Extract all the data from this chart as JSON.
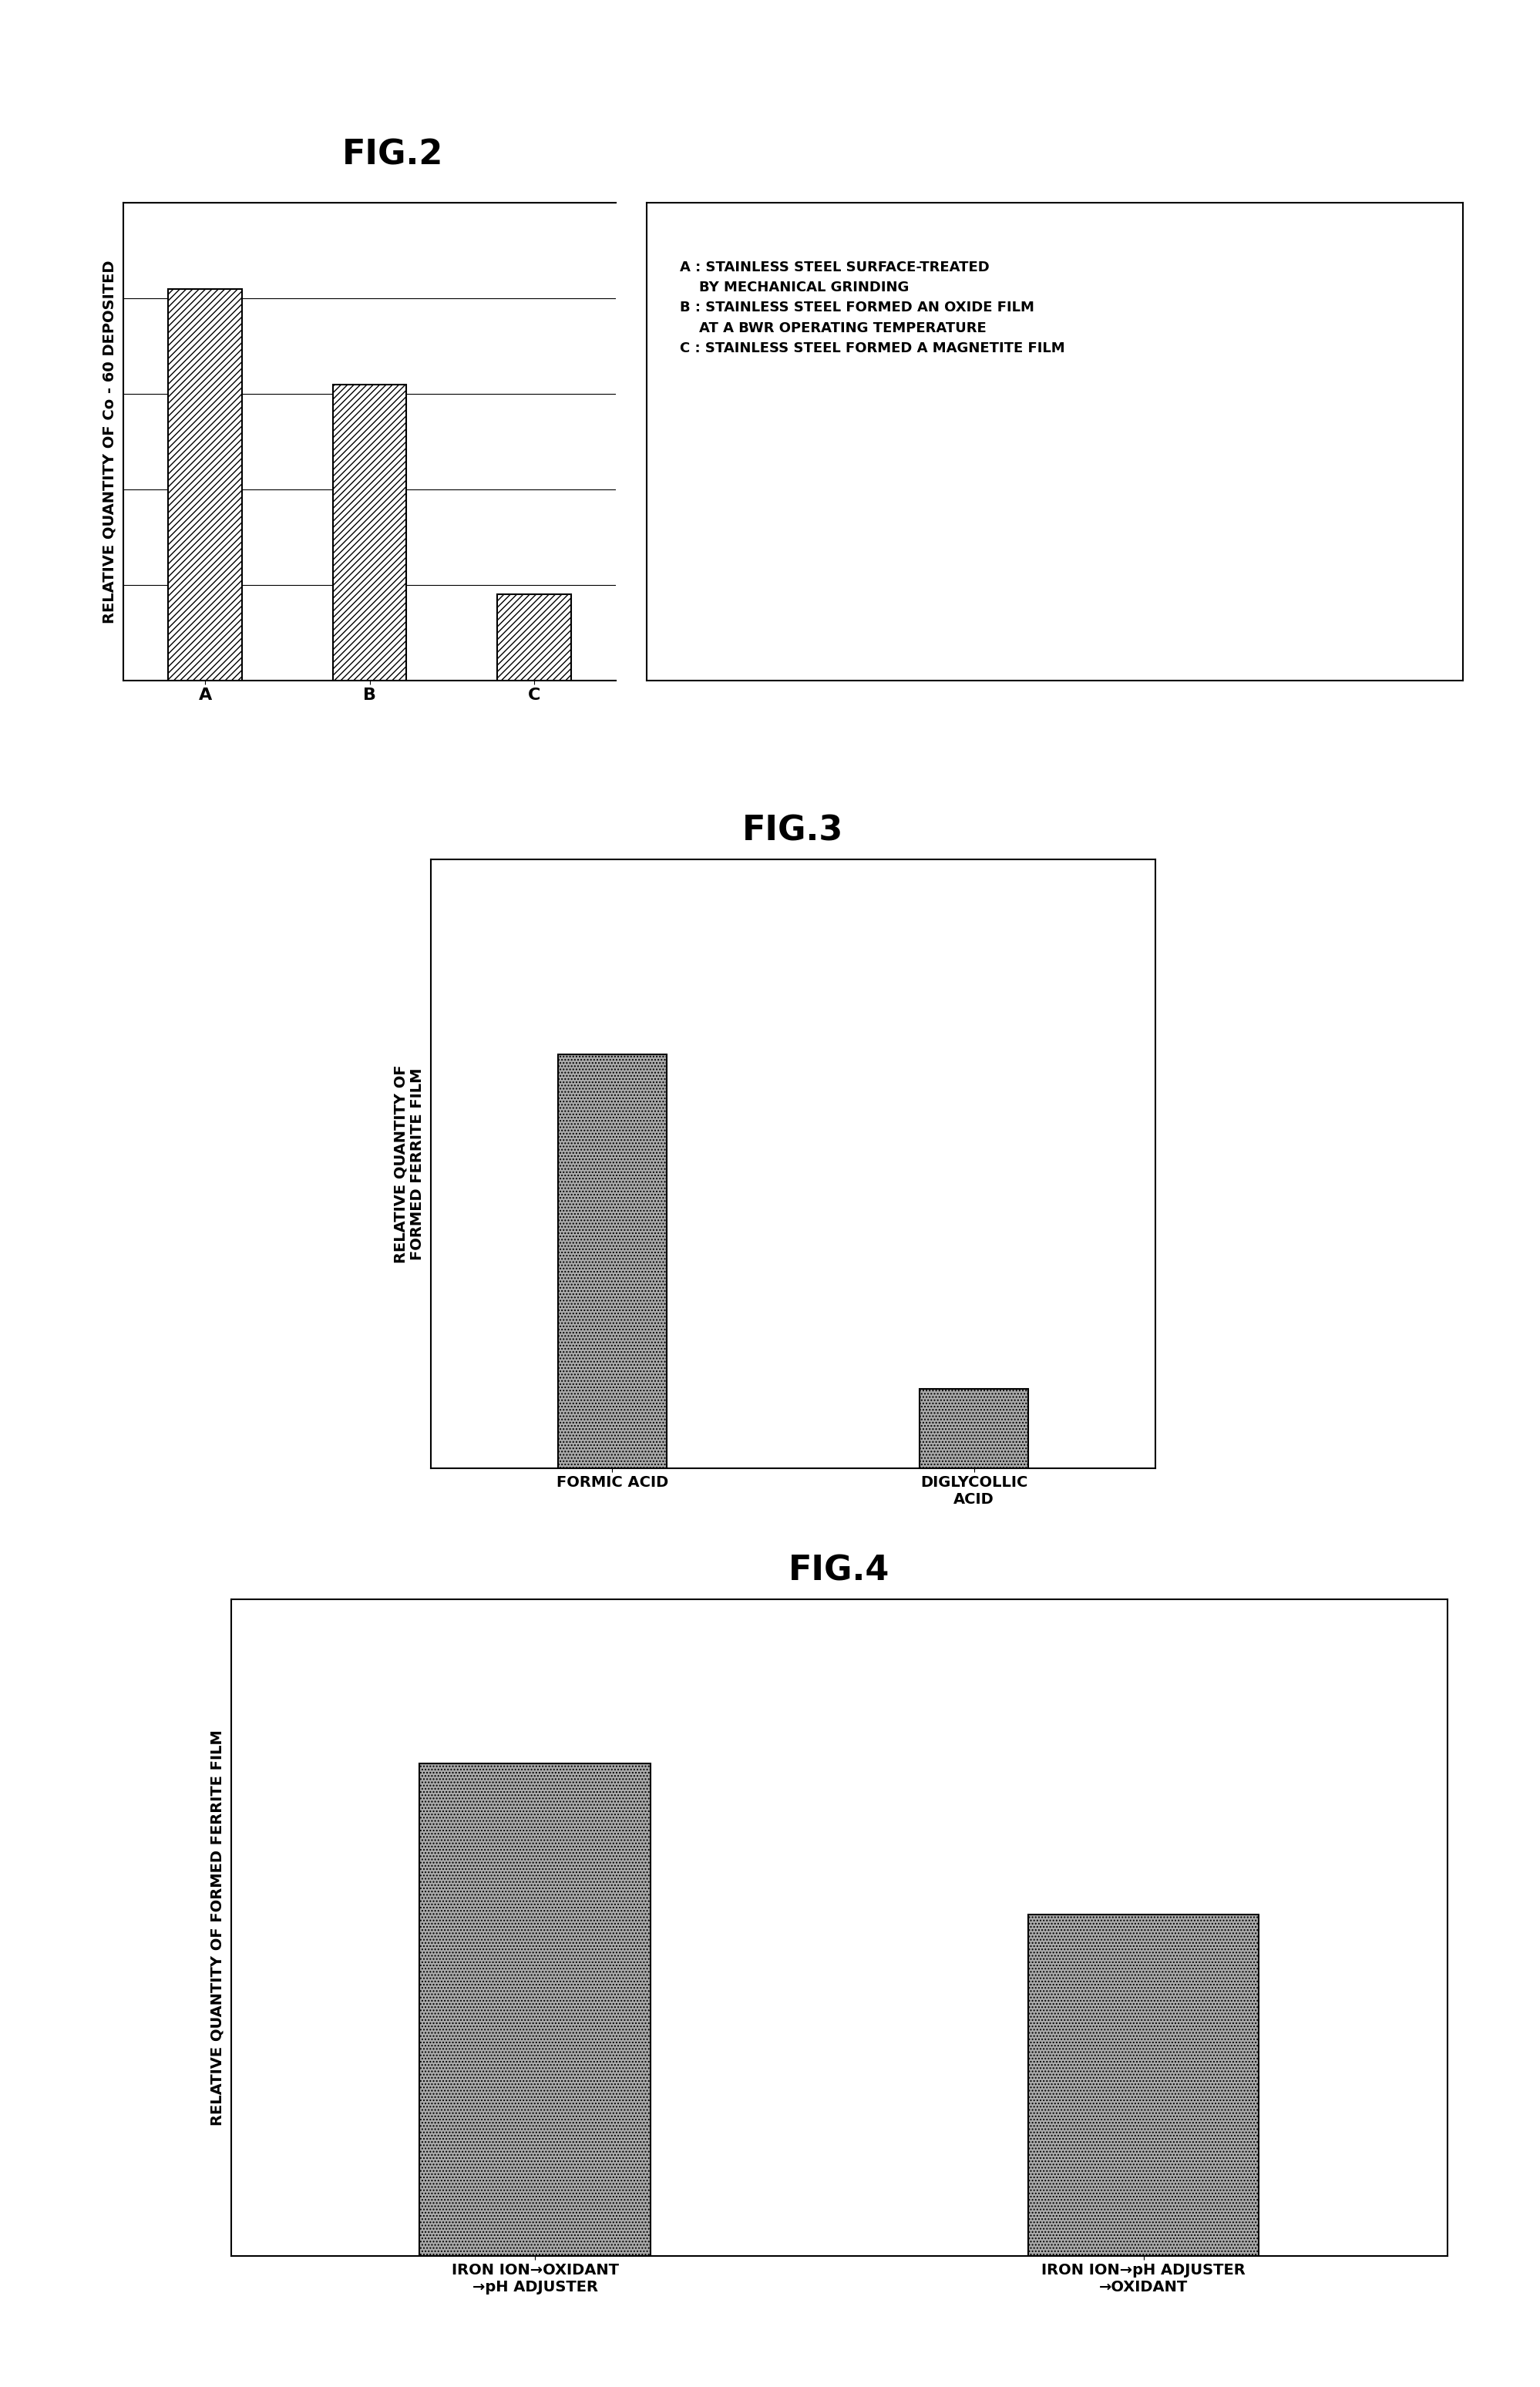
{
  "fig2": {
    "title": "FIG.2",
    "categories": [
      "A",
      "B",
      "C"
    ],
    "values": [
      0.82,
      0.62,
      0.18
    ],
    "ylabel": "RELATIVE QUANTITY OF Co - 60 DEPOSITED",
    "ylim": [
      0,
      1.0
    ],
    "hatch": "////",
    "legend_lines": [
      "A : STAINLESS STEEL SURFACE-TREATED",
      "    BY MECHANICAL GRINDING",
      "B : STAINLESS STEEL FORMED AN OXIDE FILM",
      "    AT A BWR OPERATING TEMPERATURE",
      "C : STAINLESS STEEL FORMED A MAGNETITE FILM"
    ]
  },
  "fig3": {
    "title": "FIG.3",
    "categories": [
      "FORMIC ACID",
      "DIGLYCOLLIC\nACID"
    ],
    "values": [
      0.68,
      0.13
    ],
    "ylabel": "RELATIVE QUANTITY OF\nFORMED FERRITE FILM",
    "ylim": [
      0,
      1.0
    ],
    "hatch": "....",
    "bar_color": "#aaaaaa"
  },
  "fig4": {
    "title": "FIG.4",
    "categories": [
      "IRON ION→OXIDANT\n→pH ADJUSTER",
      "IRON ION→pH ADJUSTER\n→OXIDANT"
    ],
    "values": [
      0.75,
      0.52
    ],
    "ylabel": "RELATIVE QUANTITY OF FORMED FERRITE FILM",
    "ylim": [
      0,
      1.0
    ],
    "hatch": "....",
    "bar_color": "#aaaaaa"
  },
  "background_color": "#ffffff",
  "title_fontsize": 32,
  "axis_label_fontsize": 14,
  "tick_label_fontsize": 14,
  "legend_fontsize": 13
}
